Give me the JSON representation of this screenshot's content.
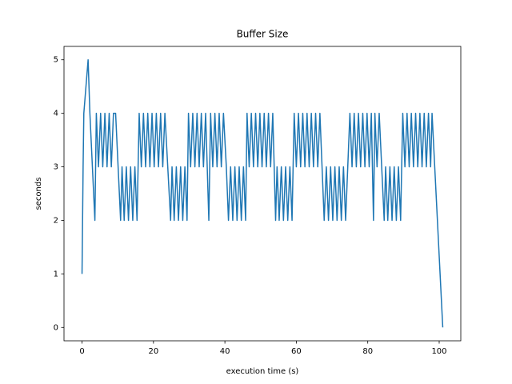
{
  "chart_data": {
    "type": "line",
    "title": "Buffer Size",
    "x_label": "execution time (s)",
    "y_label": "seconds",
    "x": [
      0,
      0.3,
      0.5,
      1.7,
      2.2,
      3.6,
      4,
      4.6,
      5.2,
      5.8,
      6.4,
      7,
      7.6,
      8.2,
      8.8,
      9.4,
      10.8,
      11.2,
      11.8,
      12.4,
      13,
      13.6,
      14.2,
      14.8,
      15.4,
      16,
      16.6,
      17.2,
      17.8,
      18.4,
      19,
      19.6,
      20.2,
      20.8,
      21.4,
      22,
      22.6,
      23.2,
      24.8,
      25.2,
      25.8,
      26.4,
      27,
      27.6,
      28.2,
      28.8,
      29.4,
      29.8,
      30.4,
      31,
      31.6,
      32.2,
      32.8,
      33.4,
      34,
      34.6,
      35.5,
      36,
      36.6,
      37.2,
      37.8,
      38.4,
      39,
      39.6,
      40.4,
      41,
      41.6,
      42.2,
      42.8,
      43.4,
      44,
      44.6,
      45.2,
      45.8,
      46.2,
      46.8,
      47.4,
      48,
      48.6,
      49.2,
      49.8,
      50.4,
      51,
      51.6,
      52.2,
      52.8,
      53.4,
      54.2,
      54.6,
      55.2,
      55.8,
      56.4,
      57,
      57.6,
      58.2,
      58.8,
      59.4,
      60,
      60.6,
      61.2,
      61.8,
      62.4,
      63,
      63.6,
      64.2,
      64.8,
      65.4,
      66,
      66.6,
      67.8,
      68.4,
      69,
      69.6,
      70.2,
      70.8,
      71.4,
      72,
      72.6,
      73.2,
      73.8,
      74.4,
      75,
      75.6,
      76.2,
      76.8,
      77.4,
      78,
      78.6,
      79.2,
      79.8,
      80.4,
      81,
      81.6,
      82,
      82.6,
      83.2,
      84.6,
      85,
      85.6,
      86.2,
      86.8,
      87.4,
      88,
      88.6,
      89.2,
      89.8,
      90.4,
      91,
      91.6,
      92.2,
      92.8,
      93.4,
      94,
      94.6,
      95.2,
      95.8,
      96.4,
      97,
      97.6,
      98,
      101
    ],
    "series": [
      {
        "color": "#1f77b4",
        "values": [
          1,
          3,
          4,
          5,
          4,
          2,
          4,
          3,
          4,
          3,
          4,
          3,
          4,
          3,
          4,
          4,
          2,
          3,
          2,
          3,
          2,
          3,
          2,
          3,
          2,
          4,
          3,
          4,
          3,
          4,
          3,
          4,
          3,
          4,
          3,
          4,
          3,
          4,
          2,
          3,
          2,
          3,
          2,
          3,
          2,
          3,
          2,
          4,
          3,
          4,
          3,
          4,
          3,
          4,
          3,
          4,
          2,
          4,
          3,
          4,
          3,
          4,
          3,
          4,
          3,
          2,
          3,
          2,
          3,
          2,
          3,
          2,
          3,
          2,
          4,
          3,
          4,
          3,
          4,
          3,
          4,
          3,
          4,
          3,
          4,
          3,
          4,
          2,
          3,
          2,
          3,
          2,
          3,
          2,
          3,
          2,
          4,
          3,
          4,
          3,
          4,
          3,
          4,
          3,
          4,
          3,
          4,
          3,
          4,
          2,
          3,
          2,
          3,
          2,
          3,
          2,
          3,
          2,
          3,
          2,
          3,
          4,
          3,
          4,
          3,
          4,
          3,
          4,
          3,
          4,
          3,
          4,
          2,
          4,
          3,
          4,
          2,
          3,
          2,
          3,
          2,
          3,
          2,
          3,
          2,
          4,
          3,
          4,
          3,
          4,
          3,
          4,
          3,
          4,
          3,
          4,
          3,
          4,
          3,
          4,
          0
        ]
      }
    ],
    "xlim": [
      -5.05,
      106.05
    ],
    "ylim": [
      -0.25,
      5.25
    ],
    "xticks": [
      0,
      20,
      40,
      60,
      80,
      100
    ],
    "yticks": [
      0,
      1,
      2,
      3,
      4,
      5
    ]
  }
}
